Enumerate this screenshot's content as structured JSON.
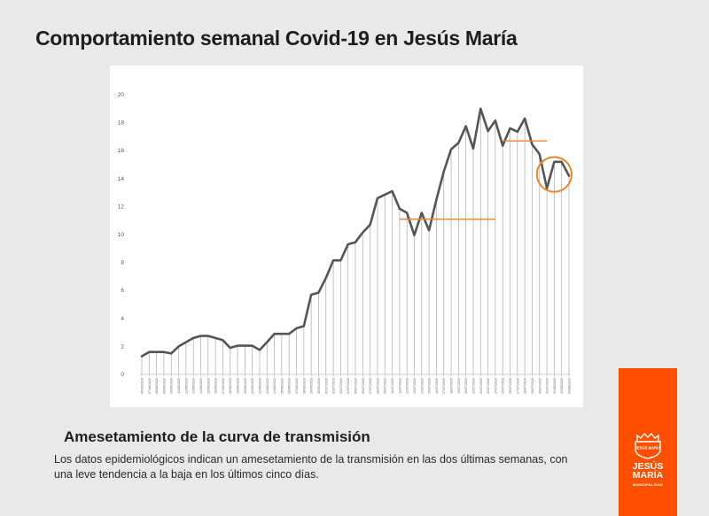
{
  "header": {
    "title": "Comportamiento semanal Covid-19 en Jesús María"
  },
  "footer": {
    "subtitle": "Amesetamiento de la curva de transmisión",
    "description": "Los datos epidemiológicos indican un amesetamiento de la transmisión en las dos últimas semanas, con una leve tendencia a la baja en los últimos cinco días."
  },
  "logo": {
    "name": "JESÚS\nMARÍA",
    "subtitle": "MUNICIPALIDAD",
    "emblem_text": "JESÚS MARÍA",
    "color": "#fe5000"
  },
  "chart_data": {
    "type": "area",
    "title": "",
    "xlabel": "",
    "ylabel": "",
    "ylim": [
      0,
      20
    ],
    "yticks": [
      0,
      2,
      4,
      6,
      8,
      10,
      12,
      14,
      16,
      18,
      20
    ],
    "grid": false,
    "x": [
      "06/06/2020",
      "07/06/2020",
      "08/06/2020",
      "09/06/2020",
      "10/06/2020",
      "11/06/2020",
      "12/06/2020",
      "13/06/2020",
      "14/06/2020",
      "15/06/2020",
      "16/06/2020",
      "17/06/2020",
      "18/06/2020",
      "19/06/2020",
      "20/06/2020",
      "21/06/2020",
      "22/06/2020",
      "23/06/2020",
      "24/06/2020",
      "25/06/2020",
      "26/06/2020",
      "27/06/2020",
      "28/06/2020",
      "29/06/2020",
      "30/06/2020",
      "01/07/2020",
      "02/07/2020",
      "03/07/2020",
      "04/07/2020",
      "05/07/2020",
      "06/07/2020",
      "07/07/2020",
      "08/07/2020",
      "09/07/2020",
      "10/07/2020",
      "11/07/2020",
      "12/07/2020",
      "13/07/2020",
      "14/07/2020",
      "15/07/2020",
      "16/07/2020",
      "17/07/2020",
      "18/07/2020",
      "19/07/2020",
      "20/07/2020",
      "21/07/2020",
      "22/07/2020",
      "23/07/2020",
      "24/07/2020",
      "25/07/2020",
      "26/07/2020",
      "27/07/2020",
      "28/07/2020",
      "29/07/2020",
      "30/07/2020",
      "31/07/2020",
      "01/08/2020",
      "02/08/2020",
      "03/08/2020"
    ],
    "series": [
      {
        "values": [
          1.3,
          1.6,
          1.6,
          1.6,
          1.5,
          2.0,
          2.3,
          2.6,
          2.75,
          2.75,
          2.6,
          2.45,
          1.9,
          2.05,
          2.05,
          2.05,
          1.75,
          2.3,
          2.9,
          2.9,
          2.9,
          3.3,
          3.45,
          5.7,
          5.85,
          6.9,
          8.15,
          8.15,
          9.3,
          9.45,
          10.15,
          10.7,
          12.6,
          12.85,
          13.1,
          11.85,
          11.55,
          9.95,
          11.55,
          10.3,
          12.5,
          14.5,
          16.1,
          16.55,
          17.75,
          16.15,
          19.0,
          17.4,
          18.15,
          16.35,
          17.6,
          17.35,
          18.3,
          16.45,
          15.75,
          13.3,
          15.2,
          15.2,
          14.2
        ]
      }
    ],
    "annotations": [
      {
        "type": "hline",
        "y": 11.1,
        "x_from": "11/07/2020",
        "x_to": "24/07/2020",
        "color": "#e8862a"
      },
      {
        "type": "hline",
        "y": 16.7,
        "x_from": "25/07/2020",
        "x_to": "31/07/2020",
        "color": "#e8862a"
      },
      {
        "type": "circle",
        "x_from": "30/07/2020",
        "x_to": "03/08/2020",
        "y_center": 14.3,
        "color": "#e8862a"
      }
    ]
  }
}
